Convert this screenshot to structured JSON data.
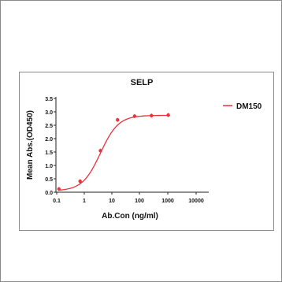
{
  "chart_data": {
    "type": "line",
    "title": "SELP",
    "xlabel": "Ab.Con (ng/ml)",
    "ylabel": "Mean Abs.(OD450)",
    "x_scale": "log",
    "xlim": [
      0.1,
      10000
    ],
    "ylim": [
      0,
      3.5
    ],
    "x_ticks": [
      0.1,
      1,
      10,
      100,
      1000,
      10000
    ],
    "x_tick_labels": [
      "0.1",
      "1",
      "10",
      "100",
      "1000",
      "10000"
    ],
    "y_ticks": [
      0,
      0.5,
      1.0,
      1.5,
      2.0,
      2.5,
      3.0,
      3.5
    ],
    "y_tick_labels": [
      "0.0",
      "0.5",
      "1.0",
      "1.5",
      "2.0",
      "2.5",
      "3.0",
      "3.5"
    ],
    "legend": "top-right",
    "grid": false,
    "series": [
      {
        "name": "DM150",
        "color": "#e8323c",
        "x": [
          0.12,
          0.69,
          3.7,
          15.2,
          62,
          250,
          1000
        ],
        "y": [
          0.12,
          0.41,
          1.55,
          2.7,
          2.84,
          2.86,
          2.88
        ],
        "curve": {
          "bottom": 0.05,
          "top": 2.87,
          "ec50": 3.7,
          "hill": 1.35
        }
      }
    ]
  }
}
